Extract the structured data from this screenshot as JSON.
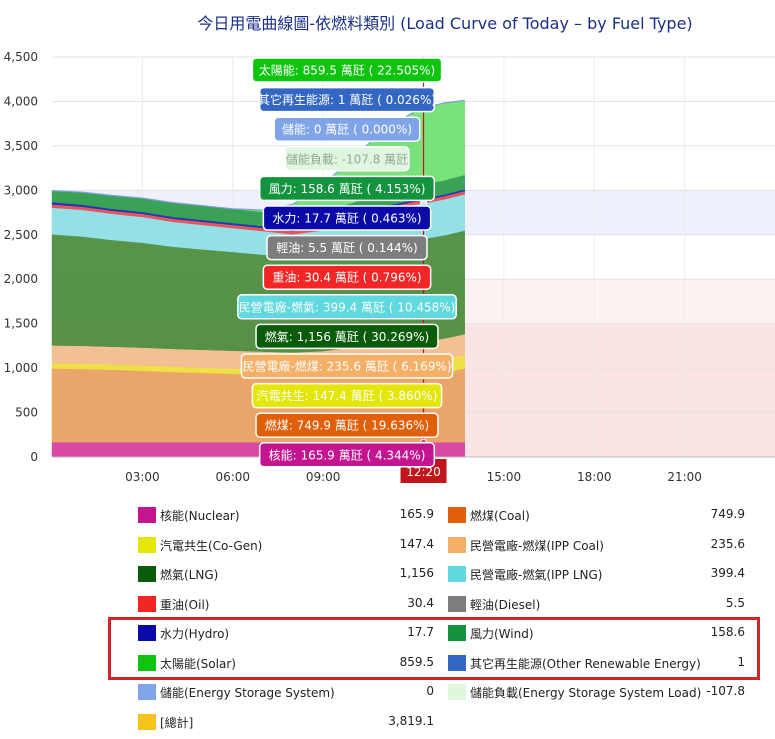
{
  "title": "今日用電曲線圖-依燃料類別 (Load Curve of Today – by Fuel Type)",
  "colors": {
    "nuclear": "#d63c9f",
    "coal": "#e8a060",
    "cogen": "#efe03a",
    "ipp_coal": "#f3be8d",
    "lng": "#4a8a3b",
    "ipp_lng": "#8ce0e6",
    "oil": "#f2444b",
    "diesel": "#888888",
    "hydro": "#2020b0",
    "wind": "#2a9c4a",
    "solar": "#6ee070",
    "other": "#4b79d0",
    "storage": "#7fa4e8",
    "storage_load": "#dff7df"
  },
  "chart_data": {
    "type": "area",
    "title": "今日用電曲線圖-依燃料類別 (Load Curve of Today – by Fuel Type)",
    "y_ticks": [
      "0",
      "500",
      "1,000",
      "1,500",
      "2,000",
      "2,500",
      "3,000",
      "3,500",
      "4,000",
      "4,500"
    ],
    "ylim": [
      0,
      4500
    ],
    "x_ticks": [
      "03:00",
      "06:00",
      "09:00",
      "15:00",
      "18:00",
      "21:00"
    ],
    "xlim_hours": [
      0,
      24
    ],
    "current_time_label": "12:20",
    "current_time_hours": 12.333,
    "data_end_hours": 13.7,
    "bands": [
      {
        "from": 0,
        "to": 1500,
        "color": "#fbe4e4"
      },
      {
        "from": 1500,
        "to": 2000,
        "color": "#fdf2f2"
      },
      {
        "from": 2500,
        "to": 3000,
        "color": "#eef0fb"
      }
    ],
    "times": [
      0,
      1,
      2,
      3,
      4,
      5,
      6,
      7,
      8,
      9,
      10,
      11,
      12,
      12.333,
      13,
      13.7
    ],
    "series": [
      {
        "name": "核能(Nuclear)",
        "key": "nuclear",
        "values": [
          165.9,
          165.9,
          165.9,
          165.9,
          165.9,
          165.9,
          165.9,
          165.9,
          165.9,
          165.9,
          165.9,
          165.9,
          165.9,
          165.9,
          165.9,
          165.9
        ]
      },
      {
        "name": "燃煤(Coal)",
        "key": "coal",
        "values": [
          830,
          825,
          815,
          805,
          790,
          780,
          770,
          760,
          750,
          745,
          745,
          748,
          750,
          749.9,
          780,
          830
        ]
      },
      {
        "name": "汽電共生(Co-Gen)",
        "key": "cogen",
        "values": [
          60,
          60,
          60,
          60,
          60,
          60,
          60,
          60,
          60,
          70,
          100,
          130,
          145,
          147.4,
          150,
          150
        ]
      },
      {
        "name": "民營電廠-燃煤(IPP Coal)",
        "key": "ipp_coal",
        "values": [
          200,
          200,
          200,
          200,
          200,
          200,
          200,
          200,
          200,
          210,
          225,
          232,
          235,
          235.6,
          236,
          236
        ]
      },
      {
        "name": "燃氣(LNG)",
        "key": "lng",
        "values": [
          1250,
          1230,
          1200,
          1180,
          1150,
          1130,
          1110,
          1090,
          1070,
          1090,
          1110,
          1140,
          1150,
          1156,
          1160,
          1165
        ]
      },
      {
        "name": "民營電廠-燃氣(IPP LNG)",
        "key": "ipp_lng",
        "values": [
          300,
          300,
          295,
          290,
          280,
          275,
          270,
          265,
          260,
          270,
          300,
          350,
          390,
          399.4,
          405,
          410
        ]
      },
      {
        "name": "重油(Oil)",
        "key": "oil",
        "values": [
          30,
          30,
          30,
          30,
          30,
          30,
          30,
          30,
          30,
          30,
          30,
          30,
          30,
          30.4,
          30,
          30
        ]
      },
      {
        "name": "輕油(Diesel)",
        "key": "diesel",
        "values": [
          5.5,
          5.5,
          5.5,
          5.5,
          5.5,
          5.5,
          5.5,
          5.5,
          5.5,
          5.5,
          5.5,
          5.5,
          5.5,
          5.5,
          5.5,
          5.5
        ]
      },
      {
        "name": "水力(Hydro)",
        "key": "hydro",
        "values": [
          25,
          22,
          20,
          20,
          20,
          20,
          20,
          20,
          20,
          20,
          20,
          19,
          18,
          17.7,
          18,
          18
        ]
      },
      {
        "name": "風力(Wind)",
        "key": "wind",
        "values": [
          130,
          140,
          150,
          155,
          160,
          160,
          160,
          160,
          160,
          160,
          160,
          160,
          159,
          158.6,
          160,
          162
        ]
      },
      {
        "name": "太陽能(Solar)",
        "key": "solar",
        "values": [
          0,
          0,
          0,
          0,
          0,
          0,
          0,
          20,
          120,
          300,
          500,
          700,
          830,
          859.5,
          870,
          840
        ]
      },
      {
        "name": "其它再生能源(Other Renewable Energy)",
        "key": "other",
        "values": [
          1,
          1,
          1,
          1,
          1,
          1,
          1,
          1,
          1,
          1,
          1,
          1,
          1,
          1,
          1,
          1
        ]
      },
      {
        "name": "儲能(Energy Storage System)",
        "key": "storage",
        "values": [
          0,
          0,
          0,
          0,
          0,
          0,
          0,
          0,
          0,
          0,
          0,
          0,
          0,
          0,
          0,
          0
        ]
      }
    ],
    "tooltips": [
      {
        "text": "太陽能: 859.5 萬瓩 ( 22.505%)",
        "bg": "#0fc40f",
        "fg": "#ffffff"
      },
      {
        "text": "其它再生能源: 1 萬瓩 ( 0.026%)",
        "bg": "#3467c4",
        "fg": "#ffffff"
      },
      {
        "text": "儲能: 0 萬瓩 ( 0.000%)",
        "bg": "#7fa4e8",
        "fg": "#ffffff"
      },
      {
        "text": "儲能負載: -107.8 萬瓩",
        "bg": "#dff7df",
        "fg": "#9aa59a"
      },
      {
        "text": "風力: 158.6 萬瓩 ( 4.153%)",
        "bg": "#13933d",
        "fg": "#ffffff"
      },
      {
        "text": "水力: 17.7 萬瓩 ( 0.463%)",
        "bg": "#0a0aa8",
        "fg": "#ffffff"
      },
      {
        "text": "輕油: 5.5 萬瓩 ( 0.144%)",
        "bg": "#7d7d7d",
        "fg": "#ffffff"
      },
      {
        "text": "重油: 30.4 萬瓩 ( 0.796%)",
        "bg": "#f22626",
        "fg": "#ffffff"
      },
      {
        "text": "民營電廠-燃氣: 399.4 萬瓩 ( 10.458%)",
        "bg": "#5fd9dd",
        "fg": "#ffffff"
      },
      {
        "text": "燃氣: 1,156 萬瓩 ( 30.269%)",
        "bg": "#0a5c0a",
        "fg": "#ffffff"
      },
      {
        "text": "民營電廠-燃煤: 235.6 萬瓩 ( 6.169%)",
        "bg": "#f5b068",
        "fg": "#ffffff"
      },
      {
        "text": "汽電共生: 147.4 萬瓩 ( 3.860%)",
        "bg": "#e4e60a",
        "fg": "#ffffff"
      },
      {
        "text": "燃煤: 749.9 萬瓩 ( 19.636%)",
        "bg": "#e05f0a",
        "fg": "#ffffff"
      },
      {
        "text": "核能: 165.9 萬瓩 ( 4.344%)",
        "bg": "#c2158f",
        "fg": "#ffffff"
      }
    ]
  },
  "legend": [
    {
      "name": "核能(Nuclear)",
      "value": "165.9",
      "color": "#c2158f"
    },
    {
      "name": "燃煤(Coal)",
      "value": "749.9",
      "color": "#e05f0a"
    },
    {
      "name": "汽電共生(Co-Gen)",
      "value": "147.4",
      "color": "#e4e60a"
    },
    {
      "name": "民營電廠-燃煤(IPP Coal)",
      "value": "235.6",
      "color": "#f5b068"
    },
    {
      "name": "燃氣(LNG)",
      "value": "1,156",
      "color": "#0a5c0a"
    },
    {
      "name": "民營電廠-燃氣(IPP LNG)",
      "value": "399.4",
      "color": "#5fd9dd"
    },
    {
      "name": "重油(Oil)",
      "value": "30.4",
      "color": "#f22626"
    },
    {
      "name": "輕油(Diesel)",
      "value": "5.5",
      "color": "#7d7d7d"
    },
    {
      "name": "水力(Hydro)",
      "value": "17.7",
      "color": "#0a0aa8"
    },
    {
      "name": "風力(Wind)",
      "value": "158.6",
      "color": "#13933d"
    },
    {
      "name": "太陽能(Solar)",
      "value": "859.5",
      "color": "#0fc40f"
    },
    {
      "name": "其它再生能源(Other Renewable Energy)",
      "value": "1",
      "color": "#3467c4"
    },
    {
      "name": "儲能(Energy Storage System)",
      "value": "0",
      "color": "#7fa4e8"
    },
    {
      "name": "儲能負載(Energy Storage System Load)",
      "value": "-107.8",
      "color": "#dff7df"
    },
    {
      "name": "[總計]",
      "value": "3,819.1",
      "color": "#f6c21c"
    }
  ]
}
